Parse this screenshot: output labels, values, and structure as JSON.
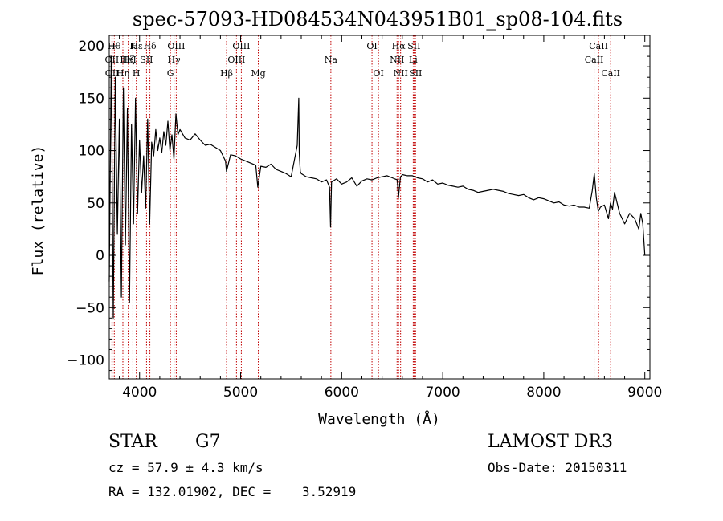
{
  "chart_data": {
    "type": "line",
    "title": "spec-57093-HD084534N043951B01_sp08-104.fits",
    "xlabel": "Wavelength (Å)",
    "ylabel": "Flux (relative)",
    "xlim": [
      3700,
      9050
    ],
    "ylim": [
      -118,
      210
    ],
    "x_ticks": [
      4000,
      5000,
      6000,
      7000,
      8000,
      9000
    ],
    "x_tick_labels": [
      "4000",
      "5000",
      "6000",
      "7000",
      "8000",
      "9000"
    ],
    "y_ticks": [
      -100,
      -50,
      0,
      50,
      100,
      150,
      200
    ],
    "y_tick_labels": [
      "−100",
      "−50",
      "0",
      "50",
      "100",
      "150",
      "200"
    ],
    "x": [
      3700,
      3720,
      3740,
      3760,
      3780,
      3800,
      3820,
      3840,
      3860,
      3880,
      3900,
      3920,
      3940,
      3960,
      3980,
      4000,
      4020,
      4040,
      4060,
      4080,
      4100,
      4120,
      4140,
      4160,
      4180,
      4200,
      4220,
      4240,
      4260,
      4280,
      4300,
      4320,
      4340,
      4360,
      4380,
      4400,
      4450,
      4500,
      4550,
      4600,
      4650,
      4700,
      4750,
      4800,
      4850,
      4860,
      4900,
      4950,
      5000,
      5050,
      5100,
      5150,
      5170,
      5200,
      5250,
      5300,
      5350,
      5400,
      5450,
      5500,
      5560,
      5575,
      5580,
      5590,
      5600,
      5650,
      5700,
      5750,
      5800,
      5850,
      5880,
      5890,
      5900,
      5950,
      6000,
      6050,
      6100,
      6150,
      6200,
      6250,
      6300,
      6350,
      6400,
      6450,
      6500,
      6550,
      6562,
      6580,
      6600,
      6650,
      6700,
      6750,
      6800,
      6850,
      6900,
      6950,
      7000,
      7050,
      7100,
      7150,
      7200,
      7250,
      7300,
      7350,
      7400,
      7450,
      7500,
      7550,
      7600,
      7650,
      7700,
      7750,
      7800,
      7850,
      7900,
      7950,
      8000,
      8050,
      8100,
      8150,
      8200,
      8250,
      8300,
      8350,
      8400,
      8450,
      8480,
      8500,
      8520,
      8540,
      8560,
      8600,
      8640,
      8660,
      8680,
      8700,
      8750,
      8800,
      8850,
      8900,
      8940,
      8960,
      8980,
      9000
    ],
    "values": [
      -25,
      190,
      -60,
      170,
      20,
      130,
      -40,
      160,
      10,
      140,
      -45,
      125,
      30,
      150,
      40,
      110,
      60,
      95,
      45,
      130,
      30,
      108,
      95,
      120,
      100,
      112,
      98,
      118,
      105,
      128,
      100,
      115,
      92,
      135,
      115,
      120,
      112,
      110,
      116,
      110,
      105,
      106,
      103,
      100,
      90,
      80,
      96,
      95,
      92,
      90,
      88,
      86,
      65,
      85,
      84,
      87,
      82,
      80,
      78,
      75,
      105,
      150,
      98,
      80,
      78,
      75,
      74,
      73,
      70,
      72,
      65,
      27,
      70,
      73,
      68,
      70,
      74,
      66,
      71,
      73,
      72,
      74,
      75,
      76,
      74,
      72,
      55,
      74,
      77,
      76,
      76,
      74,
      73,
      70,
      72,
      68,
      69,
      67,
      66,
      65,
      66,
      63,
      62,
      60,
      61,
      62,
      63,
      62,
      61,
      59,
      58,
      57,
      58,
      55,
      53,
      55,
      54,
      52,
      50,
      51,
      48,
      47,
      48,
      46,
      46,
      45,
      62,
      78,
      55,
      42,
      46,
      48,
      35,
      50,
      44,
      60,
      40,
      30,
      40,
      35,
      25,
      40,
      30,
      0
    ],
    "line_markers": [
      {
        "label": "OII",
        "x": 3727,
        "row": 1
      },
      {
        "label": "OII",
        "x": 3729,
        "row": 2
      },
      {
        "label": "Hθ",
        "x": 3750,
        "row": 0
      },
      {
        "label": "Hη",
        "x": 3835,
        "row": 2
      },
      {
        "label": "Hζ",
        "x": 3889,
        "row": 1
      },
      {
        "label": "Hε",
        "x": 3970,
        "row": 0
      },
      {
        "label": "HeI",
        "x": 3888,
        "row": 1
      },
      {
        "label": "K",
        "x": 3934,
        "row": 0
      },
      {
        "label": "H",
        "x": 3968,
        "row": 2
      },
      {
        "label": "SII",
        "x": 4069,
        "row": 1
      },
      {
        "label": "Hδ",
        "x": 4102,
        "row": 0
      },
      {
        "label": "OIII",
        "x": 4363,
        "row": 0
      },
      {
        "label": "Hγ",
        "x": 4341,
        "row": 1
      },
      {
        "label": "G",
        "x": 4305,
        "row": 2
      },
      {
        "label": "Hβ",
        "x": 4861,
        "row": 2
      },
      {
        "label": "OIII",
        "x": 5007,
        "row": 0
      },
      {
        "label": "OIII",
        "x": 4959,
        "row": 1
      },
      {
        "label": "Mg",
        "x": 5175,
        "row": 2
      },
      {
        "label": "Na",
        "x": 5893,
        "row": 1
      },
      {
        "label": "OI",
        "x": 6300,
        "row": 0
      },
      {
        "label": "OI",
        "x": 6364,
        "row": 2
      },
      {
        "label": "Hα",
        "x": 6563,
        "row": 0
      },
      {
        "label": "NII",
        "x": 6548,
        "row": 1
      },
      {
        "label": "NII",
        "x": 6583,
        "row": 2
      },
      {
        "label": "SII",
        "x": 6716,
        "row": 0
      },
      {
        "label": "Li",
        "x": 6708,
        "row": 1
      },
      {
        "label": "SII",
        "x": 6731,
        "row": 2
      },
      {
        "label": "CaII",
        "x": 8542,
        "row": 0
      },
      {
        "label": "CaII",
        "x": 8498,
        "row": 1
      },
      {
        "label": "CaII",
        "x": 8662,
        "row": 2
      }
    ]
  },
  "info": {
    "class": "STAR",
    "subclass": "G7",
    "survey": "LAMOST DR3",
    "cz": "cz = 57.9 ± 4.3 km/s",
    "obs_date": "Obs-Date: 20150311",
    "radec": "RA = 132.01902, DEC =    3.52919"
  }
}
